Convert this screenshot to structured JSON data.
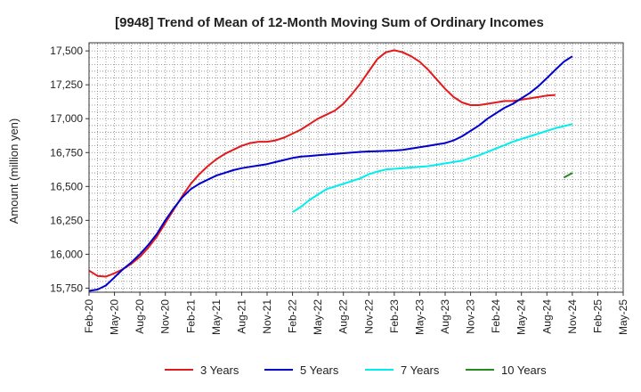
{
  "chart_data": {
    "type": "line",
    "title": "[9948]  Trend of Mean of 12-Month Moving Sum of Ordinary Incomes",
    "xlabel": "",
    "ylabel": "Amount (million yen)",
    "ylim": [
      15720,
      17560
    ],
    "yticks": [
      15750,
      16000,
      16250,
      16500,
      16750,
      17000,
      17250,
      17500
    ],
    "ytick_labels": [
      "15,750",
      "16,000",
      "16,250",
      "16,500",
      "16,750",
      "17,000",
      "17,250",
      "17,500"
    ],
    "x_start": "Feb-20",
    "x_months": 63,
    "xtick_labels": [
      "Feb-20",
      "May-20",
      "Aug-20",
      "Nov-20",
      "Feb-21",
      "May-21",
      "Aug-21",
      "Nov-21",
      "Feb-22",
      "May-22",
      "Aug-22",
      "Nov-22",
      "Feb-23",
      "May-23",
      "Aug-23",
      "Nov-23",
      "Feb-24",
      "May-24",
      "Aug-24",
      "Nov-24",
      "Feb-25",
      "May-25"
    ],
    "grid": true,
    "legend_position": "bottom",
    "series": [
      {
        "name": "3 Years",
        "color": "#e31a1c",
        "start_index": 0,
        "values": [
          15880,
          15840,
          15835,
          15860,
          15890,
          15930,
          15980,
          16050,
          16130,
          16230,
          16330,
          16430,
          16520,
          16590,
          16650,
          16700,
          16740,
          16770,
          16800,
          16820,
          16830,
          16830,
          16840,
          16860,
          16890,
          16920,
          16960,
          17000,
          17030,
          17060,
          17110,
          17180,
          17260,
          17350,
          17440,
          17490,
          17505,
          17490,
          17460,
          17420,
          17360,
          17290,
          17220,
          17160,
          17120,
          17100,
          17100,
          17110,
          17120,
          17130,
          17130,
          17140,
          17150,
          17160,
          17170,
          17175
        ]
      },
      {
        "name": "5 Years",
        "color": "#0000cc",
        "start_index": 0,
        "values": [
          15730,
          15740,
          15770,
          15830,
          15890,
          15940,
          16000,
          16070,
          16150,
          16250,
          16340,
          16420,
          16480,
          16520,
          16550,
          16580,
          16600,
          16620,
          16635,
          16645,
          16655,
          16665,
          16680,
          16695,
          16710,
          16720,
          16725,
          16730,
          16735,
          16740,
          16745,
          16750,
          16755,
          16758,
          16760,
          16762,
          16765,
          16770,
          16780,
          16790,
          16800,
          16810,
          16820,
          16840,
          16870,
          16910,
          16950,
          17000,
          17040,
          17080,
          17110,
          17150,
          17190,
          17240,
          17300,
          17360,
          17420,
          17460
        ]
      },
      {
        "name": "7 Years",
        "color": "#00eeee",
        "start_index": 24,
        "values": [
          16310,
          16350,
          16400,
          16440,
          16480,
          16500,
          16520,
          16540,
          16560,
          16590,
          16610,
          16625,
          16630,
          16635,
          16640,
          16645,
          16650,
          16660,
          16670,
          16680,
          16690,
          16710,
          16730,
          16755,
          16780,
          16805,
          16830,
          16850,
          16870,
          16890,
          16910,
          16930,
          16945,
          16960
        ]
      },
      {
        "name": "10 Years",
        "color": "#228b22",
        "start_index": 56,
        "values": [
          16565,
          16600
        ]
      }
    ]
  }
}
